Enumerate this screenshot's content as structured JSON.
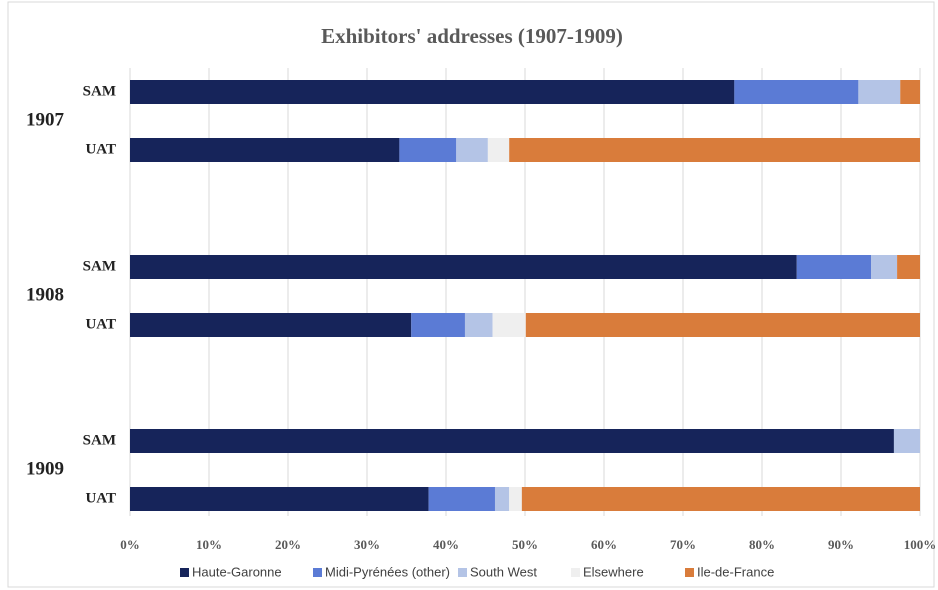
{
  "chart_data": {
    "type": "stacked_barh",
    "title": "Exhibitors' addresses (1907-1909)",
    "groups": [
      "1907",
      "1908",
      "1909"
    ],
    "categories": [
      "SAM",
      "UAT",
      "SAM",
      "UAT",
      "SAM",
      "UAT"
    ],
    "series": [
      {
        "name": "Haute-Garonne",
        "color": "#16245a",
        "values": [
          76.5,
          34.1,
          84.4,
          35.6,
          96.7,
          37.8
        ]
      },
      {
        "name": "Midi-Pyrénées (other)",
        "color": "#5b7bd5",
        "values": [
          15.7,
          7.2,
          9.4,
          6.8,
          0,
          8.4
        ]
      },
      {
        "name": "South West",
        "color": "#b4c4e6",
        "values": [
          5.3,
          4.0,
          3.3,
          3.5,
          3.3,
          1.8
        ]
      },
      {
        "name": "Elsewhere",
        "color": "#efefef",
        "values": [
          0,
          2.7,
          0,
          4.2,
          0,
          1.6
        ]
      },
      {
        "name": "Ile-de-France",
        "color": "#d97c3b",
        "values": [
          2.5,
          52.0,
          2.9,
          49.9,
          0,
          50.4
        ]
      }
    ],
    "xlim": [
      0,
      100
    ],
    "xticks": [
      {
        "value": 0,
        "label": "0%"
      },
      {
        "value": 10,
        "label": "10%"
      },
      {
        "value": 20,
        "label": "20%"
      },
      {
        "value": 30,
        "label": "30%"
      },
      {
        "value": 40,
        "label": "40%"
      },
      {
        "value": 50,
        "label": "50%"
      },
      {
        "value": 60,
        "label": "60%"
      },
      {
        "value": 70,
        "label": "70%"
      },
      {
        "value": 80,
        "label": "80%"
      },
      {
        "value": 90,
        "label": "90%"
      },
      {
        "value": 100,
        "label": "100%"
      }
    ],
    "grid": true,
    "legend": "bottom"
  }
}
